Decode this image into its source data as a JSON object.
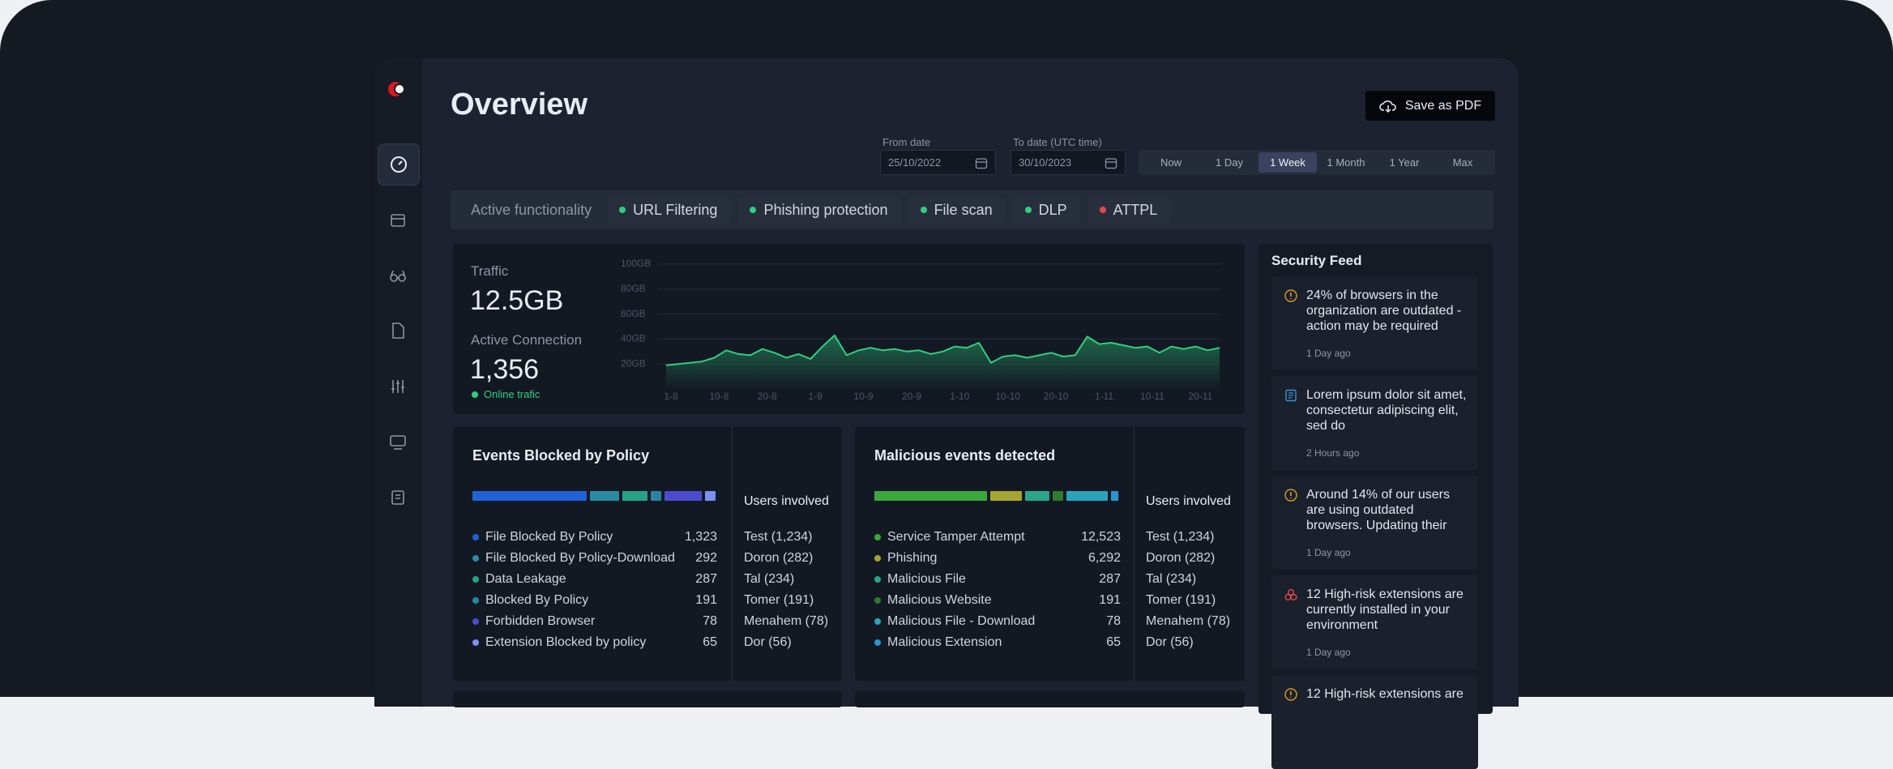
{
  "header": {
    "title": "Overview",
    "save_button": "Save as PDF"
  },
  "date_range": {
    "from_label": "From date",
    "from_value": "25/10/2022",
    "to_label": "To date (UTC time)",
    "to_value": "30/10/2023",
    "presets": [
      "Now",
      "1 Day",
      "1 Week",
      "1 Month",
      "1 Year",
      "Max"
    ],
    "active_preset": 2
  },
  "functionality": {
    "label": "Active functionality",
    "items": [
      {
        "name": "URL Filtering",
        "color": "#2fcf7f"
      },
      {
        "name": "Phishing protection",
        "color": "#2fcf7f"
      },
      {
        "name": "File scan",
        "color": "#2fcf7f"
      },
      {
        "name": "DLP",
        "color": "#2fcf7f"
      },
      {
        "name": "ATTPL",
        "color": "#e5484d"
      }
    ]
  },
  "traffic": {
    "label": "Traffic",
    "value": "12.5GB",
    "connection_label": "Active Connection",
    "connection_value": "1,356",
    "status": "Online trafic",
    "status_color": "#2fcf7f",
    "chart": {
      "type": "area",
      "categories": [
        "1-8",
        null,
        null,
        null,
        "10-8",
        null,
        null,
        null,
        "20-8",
        null,
        null,
        null,
        "1-9",
        null,
        null,
        null,
        "10-9",
        null,
        null,
        null,
        "20-9",
        null,
        null,
        null,
        "1-10",
        null,
        null,
        null,
        "10-10",
        null,
        null,
        null,
        "20-10",
        null,
        null,
        null,
        "1-11",
        null,
        null,
        null,
        "10-11",
        null,
        null,
        null,
        "20-11",
        null,
        null
      ],
      "values": [
        19,
        20,
        21,
        22,
        25,
        31,
        28,
        27,
        32,
        29,
        25,
        28,
        24,
        34,
        43,
        27,
        31,
        33,
        31,
        32,
        30,
        31,
        28,
        30,
        34,
        33,
        37,
        21,
        26,
        27,
        25,
        27,
        29,
        26,
        27,
        42,
        36,
        37,
        35,
        33,
        34,
        29,
        34,
        32,
        34,
        31,
        33
      ],
      "color": "#2fcf7f",
      "ylim": [
        0,
        100
      ],
      "yticks": [
        {
          "value": 20,
          "label": "20GB"
        },
        {
          "value": 40,
          "label": "40GB"
        },
        {
          "value": 60,
          "label": "60GB"
        },
        {
          "value": 80,
          "label": "80GB"
        },
        {
          "value": 100,
          "label": "100GB"
        }
      ],
      "grid": true
    }
  },
  "events_blocked": {
    "title": "Events Blocked by Policy",
    "users_title": "Users involved",
    "items": [
      {
        "name": "File Blocked By Policy",
        "count": "1,323",
        "color": "#1f62d8"
      },
      {
        "name": "File Blocked By Policy-Download",
        "count": "292",
        "color": "#2a8ca3"
      },
      {
        "name": "Data Leakage",
        "count": "287",
        "color": "#27a287"
      },
      {
        "name": "Blocked By Policy",
        "count": "191",
        "color": "#2b84a6"
      },
      {
        "name": "Forbidden Browser",
        "count": "78",
        "color": "#4a4ccf"
      },
      {
        "name": "Extension Blocked by policy",
        "count": "65",
        "color": "#7d8ff2"
      }
    ],
    "users": [
      "Test (1,234)",
      "Doron (282)",
      "Tal (234)",
      "Tomer (191)",
      "Menahem (78)",
      "Dor (56)"
    ]
  },
  "malicious_events": {
    "title": "Malicious events detected",
    "users_title": "Users involved",
    "items": [
      {
        "name": "Service Tamper Attempt",
        "count": "12,523",
        "color": "#3aa83d"
      },
      {
        "name": "Phishing",
        "count": "6,292",
        "color": "#a6a532"
      },
      {
        "name": "Malicious File",
        "count": "287",
        "color": "#29a68a"
      },
      {
        "name": "Malicious Website",
        "count": "191",
        "color": "#2f7b30"
      },
      {
        "name": "Malicious File - Download",
        "count": "78",
        "color": "#2aa3bb"
      },
      {
        "name": "Malicious Extension",
        "count": "65",
        "color": "#2a96cf"
      }
    ],
    "users": [
      "Test (1,234)",
      "Doron (282)",
      "Tal (234)",
      "Tomer (191)",
      "Menahem (78)",
      "Dor (56)"
    ]
  },
  "security_feed": {
    "title": "Security Feed",
    "items": [
      {
        "icon": "alert",
        "text": "24% of browsers in the organization are outdated - action may be required",
        "time": "1 Day ago"
      },
      {
        "icon": "note",
        "text": "Lorem ipsum dolor sit amet, consectetur adipiscing elit, sed do",
        "time": "2 Hours ago"
      },
      {
        "icon": "alert",
        "text": "Around 14% of our users are using outdated browsers. Updating their",
        "time": "1 Day ago"
      },
      {
        "icon": "risk",
        "text": "12 High-risk extensions are currently installed in your environment",
        "time": "1 Day ago"
      },
      {
        "icon": "alert",
        "text": "12 High-risk extensions are",
        "time": ""
      }
    ]
  }
}
